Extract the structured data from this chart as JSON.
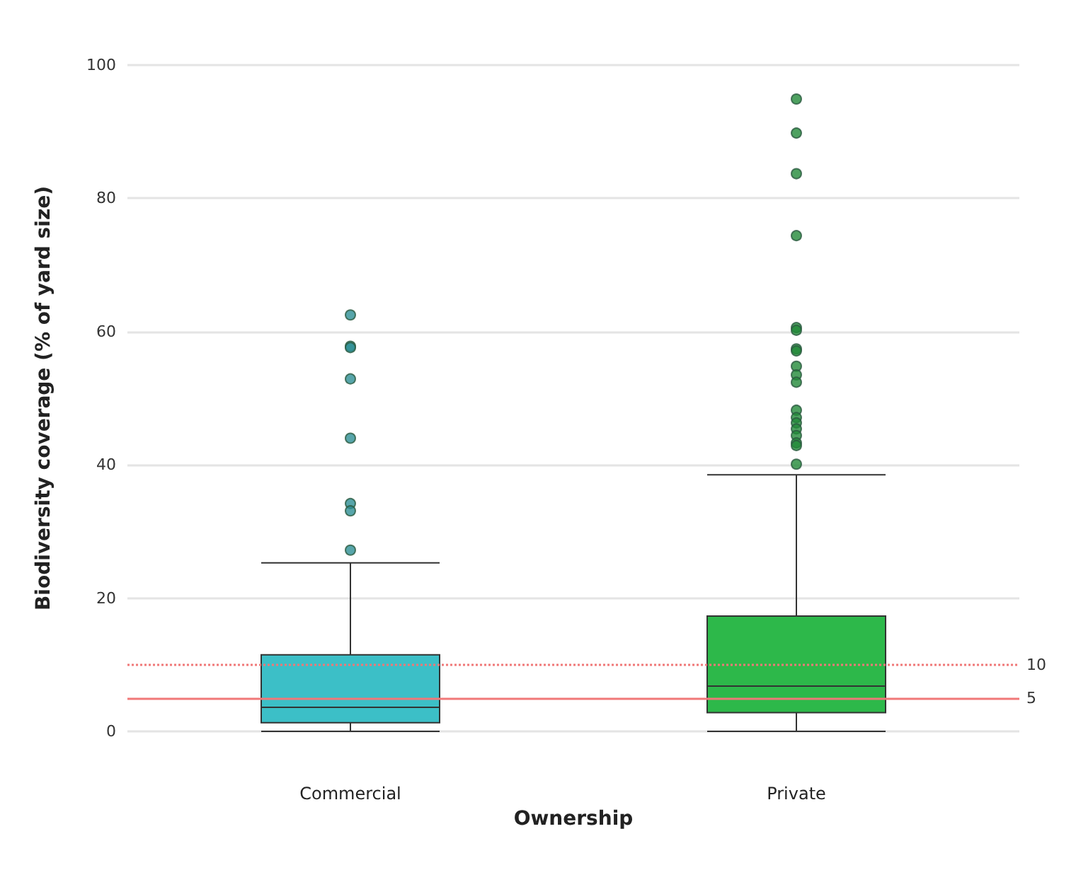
{
  "chart_data": {
    "type": "box",
    "xlabel": "Ownership",
    "ylabel": "Biodiversity coverage (% of yard size)",
    "categories": [
      "Commercial",
      "Private"
    ],
    "colors": [
      "#3cbfc7",
      "#2db84a"
    ],
    "boxes": [
      {
        "low": 0,
        "q1": 1.3,
        "median": 3.6,
        "q3": 11.5,
        "high": 25.3,
        "outliers": [
          62.5,
          57.8,
          57.6,
          52.9,
          44,
          34.2,
          33.1,
          27.2
        ]
      },
      {
        "low": 0,
        "q1": 2.8,
        "median": 6.8,
        "q3": 17.3,
        "high": 38.5,
        "outliers": [
          94.9,
          89.8,
          83.7,
          74.4,
          60.6,
          60.2,
          57.4,
          57.1,
          54.8,
          53.5,
          52.4,
          48.2,
          47.1,
          46.3,
          45.4,
          44.4,
          43.3,
          42.9,
          40.1
        ]
      }
    ],
    "ylim": [
      0,
      100
    ],
    "yticks": [
      0,
      20,
      40,
      60,
      80,
      100
    ],
    "grid": "y",
    "ref_lines": [
      {
        "axis": "y",
        "value": 10,
        "label": "10",
        "color": "#f07878",
        "line_style": "dotted"
      },
      {
        "axis": "y",
        "value": 5,
        "label": "5",
        "color": "#f07878",
        "line_style": "solid"
      }
    ]
  }
}
